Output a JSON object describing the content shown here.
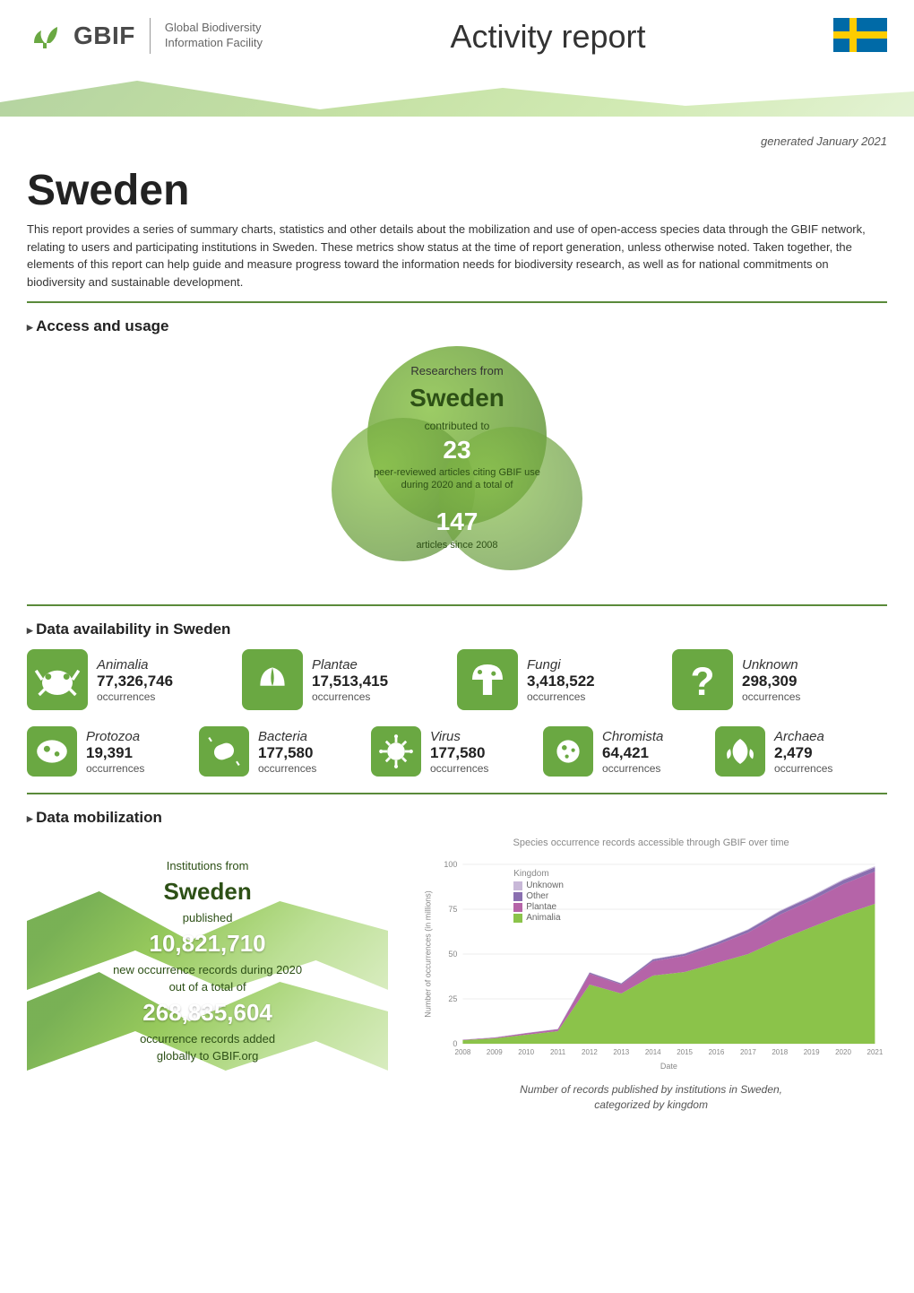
{
  "header": {
    "org_name": "GBIF",
    "tagline_line1": "Global Biodiversity",
    "tagline_line2": "Information Facility",
    "report_title": "Activity report",
    "logo_color": "#6aa842",
    "flag": {
      "bg": "#006aa7",
      "cross": "#fecc00"
    }
  },
  "generated": "generated January 2021",
  "country": "Sweden",
  "intro": "This report provides a series of summary charts, statistics and other details about the mobilization and use of open-access species data through the GBIF network, relating to users and participating institutions in Sweden. These metrics show status at the time of report generation, unless otherwise noted. Taken together, the elements of this report can help guide and measure progress toward the information needs for biodiversity research, as well as for national commitments on biodiversity and sustainable development.",
  "sections": {
    "usage_heading": "Access and usage",
    "availability_heading": "Data availability in Sweden",
    "mobilization_heading": "Data mobilization"
  },
  "usage": {
    "line1": "Researchers from",
    "country": "Sweden",
    "line2": "contributed to",
    "num1": "23",
    "line3a": "peer-reviewed articles citing GBIF use",
    "line3b": "during 2020 and a total of",
    "num2": "147",
    "line4": "articles since 2008",
    "circle_color_dark": "#5a8a3a",
    "circle_color_light": "#8bc34a"
  },
  "kingdoms_row1": [
    {
      "name": "Animalia",
      "count": "77,326,746",
      "label": "occurrences",
      "color": "#6aa842",
      "icon": "animalia"
    },
    {
      "name": "Plantae",
      "count": "17,513,415",
      "label": "occurrences",
      "color": "#6aa842",
      "icon": "plantae"
    },
    {
      "name": "Fungi",
      "count": "3,418,522",
      "label": "occurrences",
      "color": "#6aa842",
      "icon": "fungi"
    },
    {
      "name": "Unknown",
      "count": "298,309",
      "label": "occurrences",
      "color": "#6aa842",
      "icon": "unknown"
    }
  ],
  "kingdoms_row2": [
    {
      "name": "Protozoa",
      "count": "19,391",
      "label": "occurrences",
      "color": "#6aa842",
      "icon": "protozoa"
    },
    {
      "name": "Bacteria",
      "count": "177,580",
      "label": "occurrences",
      "color": "#6aa842",
      "icon": "bacteria"
    },
    {
      "name": "Virus",
      "count": "177,580",
      "label": "occurrences",
      "color": "#6aa842",
      "icon": "virus"
    },
    {
      "name": "Chromista",
      "count": "64,421",
      "label": "occurrences",
      "color": "#6aa842",
      "icon": "chromista"
    },
    {
      "name": "Archaea",
      "count": "2,479",
      "label": "occurrences",
      "color": "#6aa842",
      "icon": "archaea"
    }
  ],
  "mobilization": {
    "line1": "Institutions from",
    "country": "Sweden",
    "line2": "published",
    "num1": "10,821,710",
    "line3a": "new occurrence records during 2020",
    "line3b": "out of a total of",
    "num2": "268,835,604",
    "line4a": "occurrence records added",
    "line4b": "globally to GBIF.org"
  },
  "chart": {
    "title": "Species occurrence records accessible through GBIF over time",
    "caption_line1": "Number of records published by institutions in Sweden,",
    "caption_line2": "categorized by kingdom",
    "ylabel": "Number of occurrences (in millions)",
    "xlabel": "Date",
    "legend_title": "Kingdom",
    "legend": [
      {
        "label": "Unknown",
        "color": "#c8b8d8"
      },
      {
        "label": "Other",
        "color": "#8a6fb0"
      },
      {
        "label": "Plantae",
        "color": "#b564a8"
      },
      {
        "label": "Animalia",
        "color": "#8bc34a"
      }
    ],
    "years": [
      "2008",
      "2009",
      "2010",
      "2011",
      "2012",
      "2013",
      "2014",
      "2015",
      "2016",
      "2017",
      "2018",
      "2019",
      "2020",
      "2021"
    ],
    "y_ticks": [
      0,
      25,
      50,
      75,
      100
    ],
    "ylim": [
      0,
      100
    ],
    "series": {
      "animalia": [
        2,
        3,
        5,
        7,
        33,
        28,
        38,
        40,
        45,
        50,
        58,
        65,
        72,
        78
      ],
      "plantae": [
        0.2,
        0.4,
        0.8,
        1,
        6,
        5,
        8,
        9,
        10,
        12,
        14,
        15,
        17,
        18
      ],
      "other": [
        0.05,
        0.1,
        0.15,
        0.2,
        0.7,
        0.6,
        1,
        1.1,
        1.3,
        1.5,
        1.8,
        2,
        2.2,
        2.4
      ],
      "unknown": [
        0.02,
        0.03,
        0.05,
        0.07,
        0.2,
        0.18,
        0.3,
        0.32,
        0.35,
        0.4,
        0.45,
        0.5,
        0.55,
        0.6
      ]
    },
    "colors": {
      "animalia": "#8bc34a",
      "plantae": "#b564a8",
      "other": "#8a6fb0",
      "unknown": "#c8b8d8",
      "grid": "#dddddd",
      "axis_text": "#888888"
    }
  }
}
